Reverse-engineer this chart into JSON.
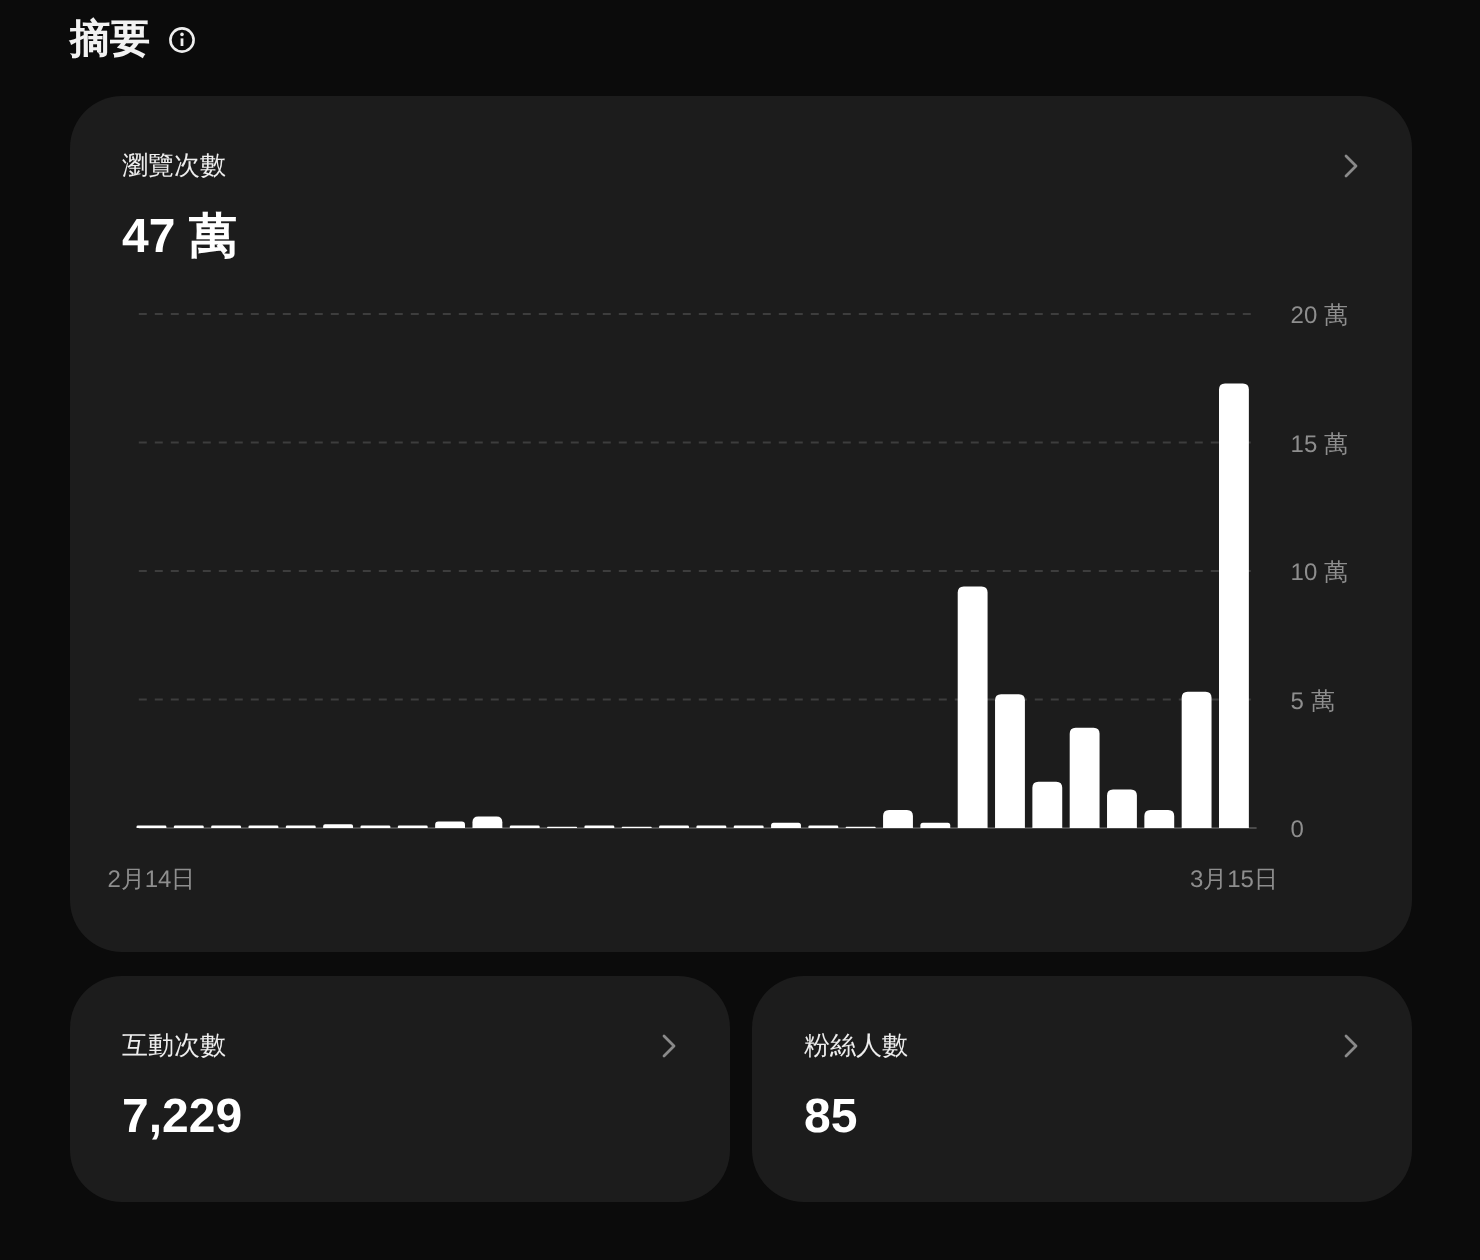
{
  "chart_data": [
    {
      "type": "other",
      "title": "摘要"
    },
    {
      "type": "bar",
      "title": "瀏覽次數",
      "subtitle": "47 萬",
      "categories": [
        "2月14日",
        null,
        null,
        null,
        null,
        null,
        null,
        null,
        null,
        null,
        null,
        null,
        null,
        null,
        null,
        null,
        null,
        null,
        null,
        null,
        null,
        null,
        null,
        null,
        null,
        null,
        null,
        null,
        null,
        "3月15日"
      ],
      "values": [
        0.1,
        0.1,
        0.1,
        0.1,
        0.1,
        0.15,
        0.1,
        0.1,
        0.25,
        0.45,
        0.1,
        0.05,
        0.1,
        0.05,
        0.1,
        0.1,
        0.1,
        0.2,
        0.1,
        0.05,
        0.7,
        0.2,
        9.4,
        5.2,
        1.8,
        3.9,
        1.5,
        0.7,
        5.3,
        17.3
      ],
      "color": "#ffffff",
      "ylim": [
        0,
        20
      ],
      "yticks": [
        0,
        {
          "value": 5,
          "label": "5 萬"
        },
        {
          "value": 10,
          "label": "10 萬"
        },
        {
          "value": 15,
          "label": "15 萬"
        },
        {
          "value": 20,
          "label": "20 萬"
        }
      ],
      "grid": "y"
    },
    {
      "type": "other",
      "title": "互動次數",
      "subtitle": "7,229"
    },
    {
      "type": "other",
      "title": "粉絲人數",
      "subtitle": "85"
    }
  ]
}
